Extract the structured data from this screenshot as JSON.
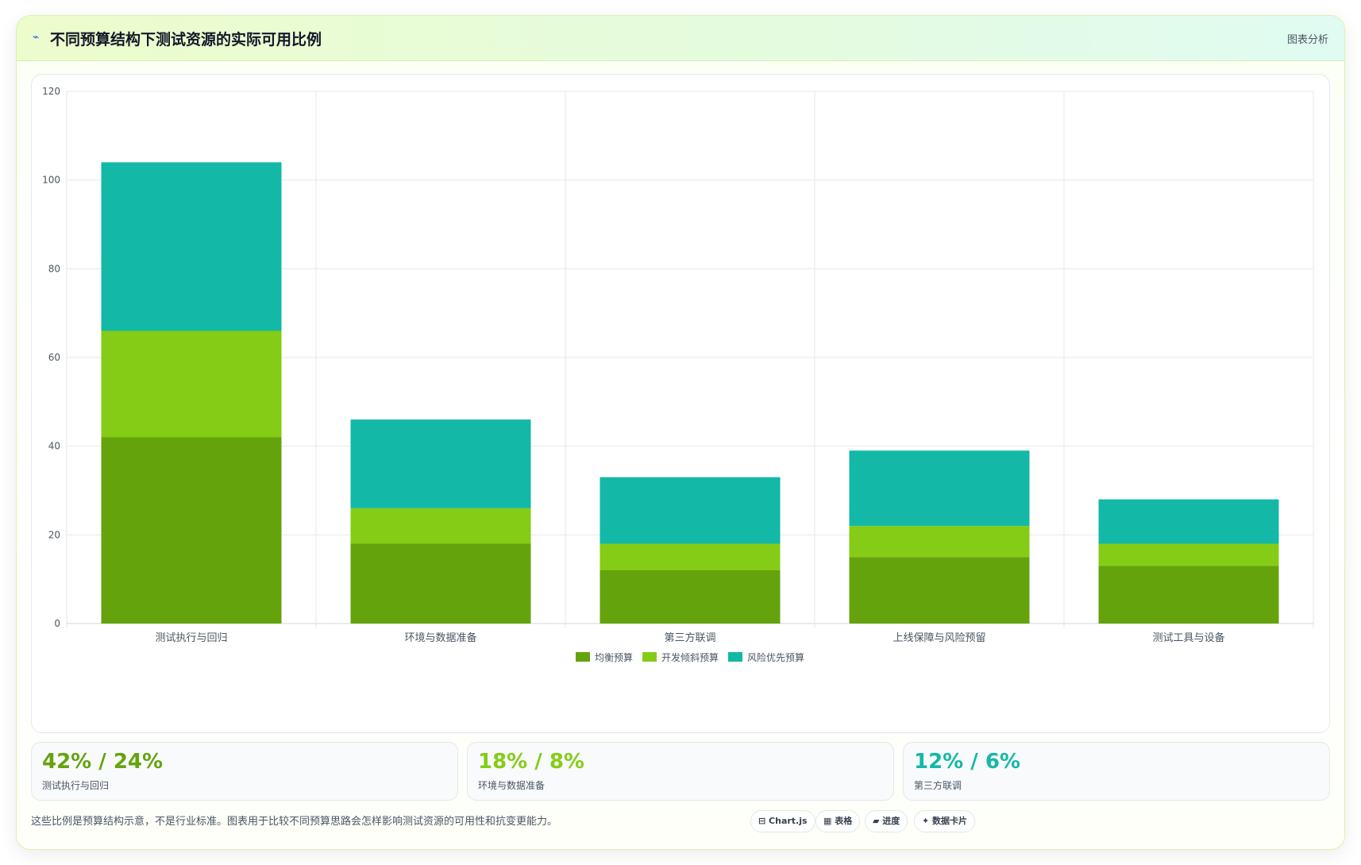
{
  "header": {
    "icon": "chart-line-icon",
    "title": "不同预算结构下测试资源的实际可用比例",
    "right_label": "图表分析"
  },
  "chart_data": {
    "type": "bar",
    "stacked": true,
    "categories": [
      "测试执行与回归",
      "环境与数据准备",
      "第三方联调",
      "上线保障与风险预留",
      "测试工具与设备"
    ],
    "series": [
      {
        "name": "均衡预算",
        "color": "#65a30d",
        "values": [
          42,
          18,
          12,
          15,
          13
        ]
      },
      {
        "name": "开发倾斜预算",
        "color": "#84cc16",
        "values": [
          24,
          8,
          6,
          7,
          5
        ]
      },
      {
        "name": "风险优先预算",
        "color": "#14b8a6",
        "values": [
          38,
          20,
          15,
          17,
          10
        ]
      }
    ],
    "ylim": [
      0,
      120
    ],
    "yticks": [
      0,
      20,
      40,
      60,
      80,
      100,
      120
    ],
    "grid": true,
    "legend": "bottom"
  },
  "stats": [
    {
      "value": "42% / 24%",
      "label": "测试执行与回归",
      "color": "#65a30d"
    },
    {
      "value": "18% / 8%",
      "label": "环境与数据准备",
      "color": "#84cc16"
    },
    {
      "value": "12% / 6%",
      "label": "第三方联调",
      "color": "#14b8a6"
    }
  ],
  "note": "这些比例是预算结构示意，不是行业标准。图表用于比较不同预算思路会怎样影响测试资源的可用性和抗变更能力。",
  "chips": [
    {
      "label": "⊟ Chart.js",
      "icon": "chart-icon"
    },
    {
      "label": "▦ 表格",
      "icon": "table-icon"
    },
    {
      "label": "▰ 进度",
      "icon": "progress-icon"
    },
    {
      "label": "✦ 数据卡片",
      "icon": "card-icon"
    }
  ]
}
